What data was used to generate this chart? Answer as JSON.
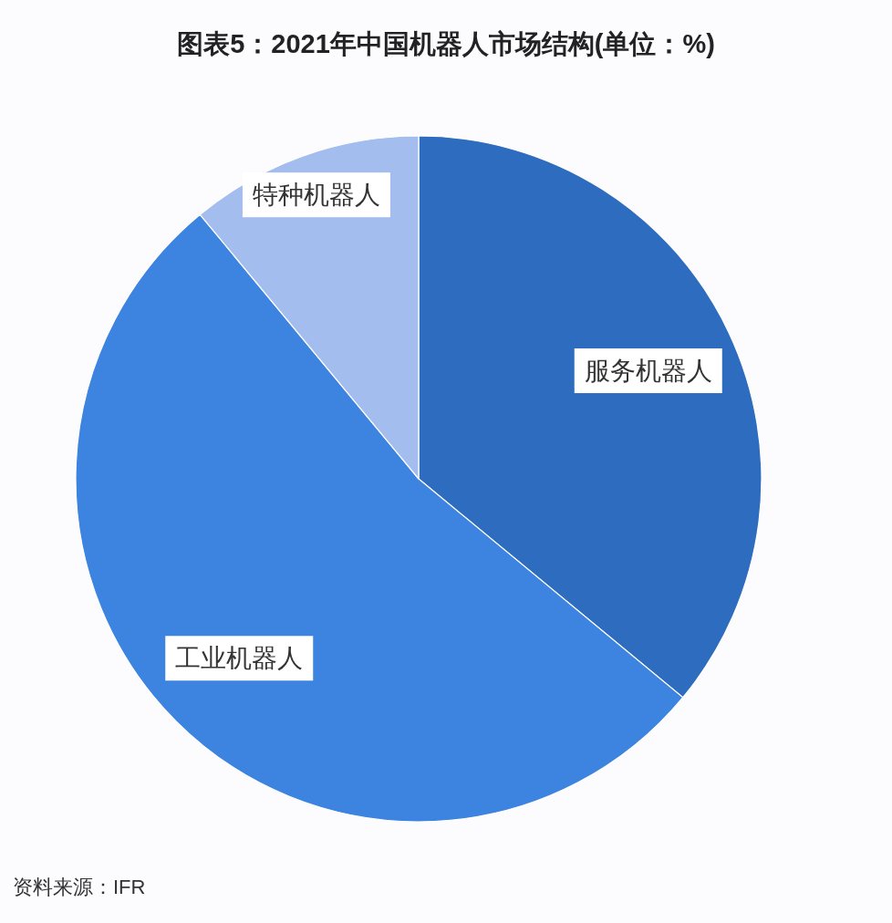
{
  "chart_data": {
    "type": "pie",
    "title": "图表5：2021年中国机器人市场结构(单位：%)",
    "categories": [
      "服务机器人",
      "工业机器人",
      "特种机器人"
    ],
    "values": [
      36,
      53,
      11
    ],
    "colors": [
      "#2e6cbf",
      "#3c84e0",
      "#a4bdef"
    ],
    "annotations": [
      "资料来源：IFR"
    ]
  }
}
